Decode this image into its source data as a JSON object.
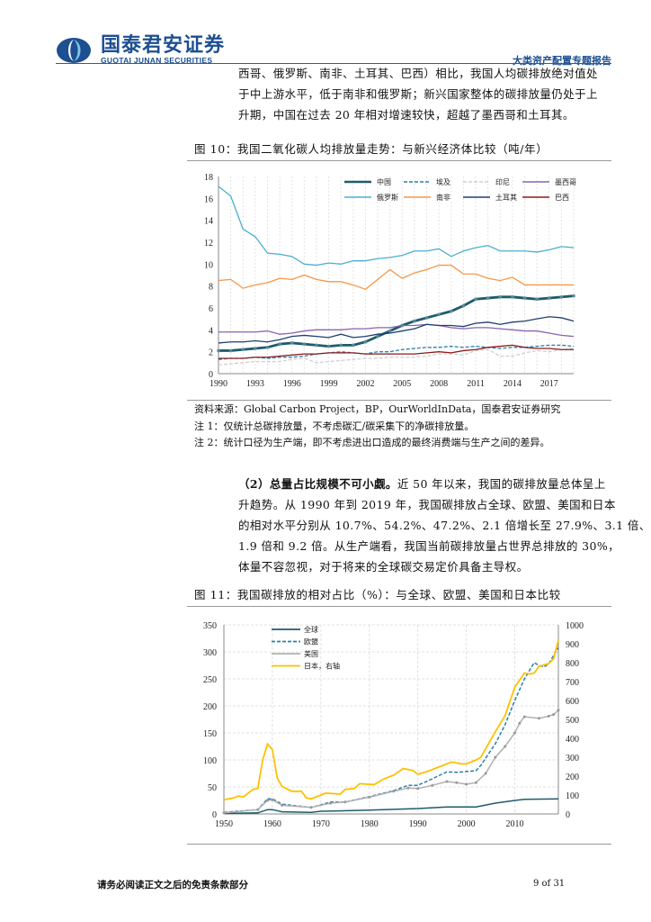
{
  "header": {
    "logo_cn": "国泰君安证券",
    "logo_en": "GUOTAI JUNAN SECURITIES",
    "report_type": "大类资产配置专题报告"
  },
  "intro_lines": [
    "西哥、俄罗斯、南非、土耳其、巴西）相比，我国人均碳排放绝对值处",
    "于中上游水平，低于南非和俄罗斯；新兴国家整体的碳排放量仍处于上",
    "升期，中国在过去 20 年相对增速较快，超越了墨西哥和土耳其。"
  ],
  "figure10": {
    "caption": "图  10：我国二氧化碳人均排放量走势：与新兴经济体比较（吨/年）",
    "source": "资料来源：Global Carbon Project，BP，OurWorldInData，国泰君安证券研究",
    "note1": "注 1：仅统计总碳排放量，不考虑碳汇/碳采集下的净碳排放量。",
    "note2": "注 2：统计口径为生产端，即不考虑进出口造成的最终消费端与生产之间的差异。"
  },
  "paragraph2": {
    "bold": "（2）总量占比规模不可小觑。",
    "lines": [
      "近 50 年以来，我国的碳排放量总体呈上",
      "升趋势。从 1990 年到 2019 年，我国碳排放占全球、欧盟、美国和日本",
      "的相对水平分别从 10.7%、54.2%、47.2%、2.1 倍增长至 27.9%、3.1 倍、",
      "1.9 倍和 9.2 倍。从生产端看，我国当前碳排放量占世界总排放的 30%，",
      "体量不容忽视，对于将来的全球碳交易定价具备主导权。"
    ]
  },
  "figure11": {
    "caption": "图  11：我国碳排放的相对占比（%）：与全球、欧盟、美国和日本比较"
  },
  "footer": {
    "disclaimer": "请务必阅读正文之后的免责条款部分",
    "page": "9 of 31"
  },
  "chart_data": [
    {
      "type": "line",
      "title": "",
      "xlabel": "",
      "ylabel": "",
      "xlim": [
        1990,
        2019
      ],
      "ylim": [
        0,
        18
      ],
      "x_ticks": [
        "1990",
        "1993",
        "1996",
        "1999",
        "2002",
        "2005",
        "2008",
        "2011",
        "2014",
        "2017"
      ],
      "y_ticks": [
        "0",
        "2",
        "4",
        "6",
        "8",
        "10",
        "12",
        "14",
        "16",
        "18"
      ],
      "grid": "vertical dashed",
      "legend": "top-right",
      "x_start": 1990,
      "series": [
        {
          "name": "中国",
          "color": "#1f5b6b",
          "style": "thick-star",
          "values": [
            2.1,
            2.1,
            2.2,
            2.3,
            2.4,
            2.7,
            2.8,
            2.7,
            2.6,
            2.5,
            2.6,
            2.6,
            2.9,
            3.4,
            3.9,
            4.4,
            4.8,
            5.1,
            5.4,
            5.7,
            6.2,
            6.8,
            6.9,
            7.0,
            7.0,
            6.9,
            6.8,
            6.9,
            7.0,
            7.1
          ]
        },
        {
          "name": "埃及",
          "color": "#2b7fa8",
          "style": "dashed",
          "values": [
            1.3,
            1.4,
            1.4,
            1.5,
            1.4,
            1.5,
            1.5,
            1.6,
            1.8,
            1.9,
            2.0,
            1.9,
            1.8,
            2.0,
            2.0,
            2.2,
            2.3,
            2.4,
            2.4,
            2.5,
            2.4,
            2.5,
            2.4,
            2.3,
            2.4,
            2.4,
            2.5,
            2.6,
            2.6,
            2.5
          ]
        },
        {
          "name": "印尼",
          "color": "#cfcfcf",
          "style": "dashed",
          "values": [
            0.8,
            0.9,
            1.0,
            1.1,
            1.1,
            1.1,
            1.3,
            1.4,
            1.0,
            1.1,
            1.2,
            1.3,
            1.4,
            1.4,
            1.5,
            1.5,
            1.5,
            1.6,
            1.8,
            1.8,
            1.7,
            2.1,
            2.2,
            1.6,
            1.6,
            1.9,
            2.1,
            2.0,
            2.2,
            2.3
          ]
        },
        {
          "name": "墨西哥",
          "color": "#8a63b0",
          "style": "solid",
          "values": [
            3.8,
            3.8,
            3.8,
            3.8,
            3.9,
            3.6,
            3.7,
            3.9,
            4.0,
            4.0,
            4.0,
            4.1,
            4.1,
            4.2,
            4.2,
            4.4,
            4.4,
            4.5,
            4.4,
            4.2,
            4.1,
            4.2,
            4.2,
            4.1,
            4.0,
            3.9,
            3.9,
            3.7,
            3.5,
            3.4
          ]
        },
        {
          "name": "俄罗斯",
          "color": "#4bafd0",
          "style": "solid",
          "values": [
            17.1,
            16.2,
            13.2,
            12.5,
            11.0,
            10.9,
            10.7,
            10.0,
            9.9,
            10.1,
            10.0,
            10.3,
            10.3,
            10.5,
            10.6,
            10.8,
            11.2,
            11.2,
            11.4,
            10.7,
            11.2,
            11.5,
            11.7,
            11.2,
            11.2,
            11.2,
            11.1,
            11.3,
            11.6,
            11.5
          ]
        },
        {
          "name": "南非",
          "color": "#f79646",
          "style": "solid",
          "values": [
            8.5,
            8.6,
            7.8,
            8.1,
            8.3,
            8.7,
            8.6,
            9.0,
            8.6,
            8.4,
            8.4,
            8.1,
            7.7,
            8.6,
            9.5,
            8.7,
            9.2,
            9.5,
            9.9,
            9.9,
            9.1,
            9.1,
            8.7,
            8.5,
            8.8,
            8.1,
            8.1,
            8.1,
            8.1,
            8.1
          ]
        },
        {
          "name": "土耳其",
          "color": "#1f3f6e",
          "style": "solid",
          "values": [
            2.8,
            2.9,
            2.9,
            3.0,
            2.9,
            3.1,
            3.4,
            3.5,
            3.4,
            3.3,
            3.6,
            3.3,
            3.4,
            3.6,
            3.7,
            3.9,
            4.1,
            4.5,
            4.4,
            4.4,
            4.3,
            4.6,
            4.7,
            4.5,
            4.7,
            4.8,
            5.0,
            5.2,
            5.1,
            4.8
          ]
        },
        {
          "name": "巴西",
          "color": "#8b1a1a",
          "style": "solid",
          "values": [
            1.4,
            1.4,
            1.4,
            1.5,
            1.5,
            1.6,
            1.7,
            1.8,
            1.8,
            1.9,
            1.9,
            1.9,
            1.8,
            1.8,
            1.8,
            1.8,
            1.8,
            1.9,
            2.0,
            1.9,
            2.1,
            2.2,
            2.4,
            2.5,
            2.6,
            2.4,
            2.3,
            2.3,
            2.2,
            2.2
          ]
        }
      ]
    },
    {
      "type": "line",
      "title": "",
      "xlabel": "",
      "ylabel": "",
      "xlim": [
        1950,
        2019
      ],
      "ylim": [
        0,
        350
      ],
      "y2lim": [
        0,
        1000
      ],
      "x_ticks": [
        "1950",
        "1960",
        "1970",
        "1980",
        "1990",
        "2000",
        "2010"
      ],
      "y_ticks": [
        "0",
        "50",
        "100",
        "150",
        "200",
        "250",
        "300",
        "350"
      ],
      "y2_ticks": [
        "0",
        "100",
        "200",
        "300",
        "400",
        "500",
        "600",
        "700",
        "800",
        "900",
        "1000"
      ],
      "grid": "dashed",
      "legend": "top-left",
      "series": [
        {
          "name": "全球",
          "color": "#1f5b6b",
          "style": "solid",
          "axis": "left",
          "points": [
            [
              1950,
              1
            ],
            [
              1957,
              2
            ],
            [
              1959,
              8
            ],
            [
              1960,
              8
            ],
            [
              1962,
              4
            ],
            [
              1968,
              3
            ],
            [
              1970,
              5
            ],
            [
              1980,
              7
            ],
            [
              1990,
              10
            ],
            [
              1996,
              13
            ],
            [
              2002,
              13
            ],
            [
              2006,
              20
            ],
            [
              2010,
              25
            ],
            [
              2012,
              27
            ],
            [
              2019,
              28
            ]
          ]
        },
        {
          "name": "欧盟",
          "color": "#2b7fa8",
          "style": "dashed",
          "axis": "left",
          "points": [
            [
              1950,
              3
            ],
            [
              1957,
              8
            ],
            [
              1959,
              28
            ],
            [
              1960,
              28
            ],
            [
              1962,
              18
            ],
            [
              1968,
              12
            ],
            [
              1972,
              22
            ],
            [
              1975,
              22
            ],
            [
              1980,
              32
            ],
            [
              1985,
              43
            ],
            [
              1988,
              53
            ],
            [
              1990,
              53
            ],
            [
              1993,
              65
            ],
            [
              1996,
              78
            ],
            [
              1998,
              77
            ],
            [
              2002,
              80
            ],
            [
              2003,
              90
            ],
            [
              2006,
              130
            ],
            [
              2008,
              165
            ],
            [
              2010,
              210
            ],
            [
              2012,
              250
            ],
            [
              2014,
              280
            ],
            [
              2015,
              275
            ],
            [
              2016,
              272
            ],
            [
              2017,
              278
            ],
            [
              2019,
              308
            ]
          ]
        },
        {
          "name": "美国",
          "color": "#b0b0b0",
          "style": "dot-marker",
          "axis": "left",
          "points": [
            [
              1950,
              2
            ],
            [
              1957,
              8
            ],
            [
              1959,
              25
            ],
            [
              1960,
              26
            ],
            [
              1962,
              16
            ],
            [
              1968,
              12
            ],
            [
              1972,
              20
            ],
            [
              1975,
              22
            ],
            [
              1980,
              31
            ],
            [
              1985,
              42
            ],
            [
              1988,
              48
            ],
            [
              1990,
              47
            ],
            [
              1993,
              53
            ],
            [
              1996,
              60
            ],
            [
              1998,
              58
            ],
            [
              2000,
              55
            ],
            [
              2002,
              58
            ],
            [
              2004,
              75
            ],
            [
              2006,
              105
            ],
            [
              2008,
              125
            ],
            [
              2010,
              150
            ],
            [
              2011,
              168
            ],
            [
              2012,
              180
            ],
            [
              2015,
              177
            ],
            [
              2017,
              181
            ],
            [
              2018,
              184
            ],
            [
              2019,
              192
            ]
          ]
        },
        {
          "name": "日本，右轴",
          "color": "#ffc000",
          "style": "solid",
          "axis": "right",
          "points": [
            [
              1950,
              75
            ],
            [
              1952,
              85
            ],
            [
              1953,
              95
            ],
            [
              1954,
              90
            ],
            [
              1956,
              130
            ],
            [
              1957,
              135
            ],
            [
              1958,
              285
            ],
            [
              1959,
              370
            ],
            [
              1960,
              340
            ],
            [
              1961,
              190
            ],
            [
              1962,
              145
            ],
            [
              1964,
              120
            ],
            [
              1966,
              120
            ],
            [
              1967,
              85
            ],
            [
              1968,
              80
            ],
            [
              1970,
              100
            ],
            [
              1971,
              110
            ],
            [
              1974,
              105
            ],
            [
              1975,
              130
            ],
            [
              1977,
              135
            ],
            [
              1978,
              160
            ],
            [
              1981,
              155
            ],
            [
              1983,
              185
            ],
            [
              1985,
              205
            ],
            [
              1987,
              240
            ],
            [
              1989,
              230
            ],
            [
              1990,
              210
            ],
            [
              1992,
              225
            ],
            [
              1994,
              245
            ],
            [
              1996,
              265
            ],
            [
              1997,
              275
            ],
            [
              1999,
              265
            ],
            [
              2000,
              265
            ],
            [
              2002,
              285
            ],
            [
              2003,
              300
            ],
            [
              2006,
              435
            ],
            [
              2008,
              520
            ],
            [
              2010,
              670
            ],
            [
              2012,
              745
            ],
            [
              2013,
              740
            ],
            [
              2014,
              745
            ],
            [
              2015,
              780
            ],
            [
              2017,
              795
            ],
            [
              2018,
              820
            ],
            [
              2019,
              920
            ]
          ]
        }
      ]
    }
  ]
}
